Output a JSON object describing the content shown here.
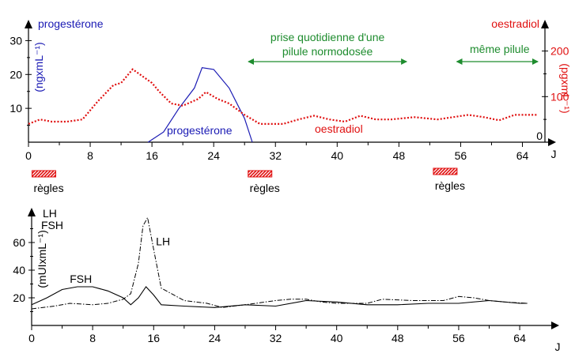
{
  "colors": {
    "progesterone": "#1a1ab4",
    "oestradiol": "#e01010",
    "annotation": "#1e8c2e",
    "axis": "#000000",
    "regles": "#e01010"
  },
  "chart_data": [
    {
      "type": "line",
      "xlabel": "J",
      "x_ticks": [
        0,
        8,
        16,
        24,
        32,
        40,
        48,
        56,
        64
      ],
      "xlim": [
        0,
        66
      ],
      "left_axis": {
        "name": "progestérone",
        "unit": "(ngxmL⁻¹)",
        "ticks": [
          10,
          20,
          30
        ],
        "ylim": [
          0,
          35
        ]
      },
      "right_axis": {
        "name": "oestradiol",
        "unit": "(pgxmL⁻¹)",
        "ticks": [
          0,
          100,
          200
        ],
        "ylim": [
          0,
          260
        ]
      },
      "series": [
        {
          "name": "progestérone",
          "axis": "left",
          "style": "solid",
          "x": [
            15.5,
            17.5,
            19.5,
            21.5,
            22.5,
            24,
            26,
            28,
            29
          ],
          "y": [
            0,
            3,
            10,
            16,
            22,
            21.5,
            16,
            7,
            0
          ]
        },
        {
          "name": "oestradiol",
          "axis": "right",
          "style": "dotted",
          "x": [
            0,
            1.5,
            3,
            5,
            7,
            9,
            11,
            12,
            13.5,
            16,
            17,
            18.5,
            20,
            22,
            23,
            24.5,
            26,
            28,
            30,
            33,
            35,
            37,
            39,
            41,
            43,
            45,
            47,
            50,
            53,
            55,
            57,
            59,
            61,
            63,
            66
          ],
          "y": [
            40,
            50,
            45,
            45,
            50,
            90,
            125,
            130,
            160,
            130,
            110,
            85,
            80,
            95,
            110,
            95,
            85,
            60,
            40,
            40,
            50,
            58,
            50,
            45,
            58,
            50,
            50,
            55,
            50,
            55,
            60,
            55,
            48,
            60,
            60
          ]
        }
      ],
      "annotations": [
        {
          "text": "prise quotidienne d'une\npilule normodosée",
          "from": 28.5,
          "to": 49
        },
        {
          "text": "même pilule",
          "from": 55.5,
          "to": 66
        }
      ],
      "periods": [
        {
          "label": "règles",
          "x": 2
        },
        {
          "label": "règles",
          "x": 30
        },
        {
          "label": "règles",
          "x": 54
        }
      ]
    },
    {
      "type": "line",
      "xlabel": "J",
      "x_ticks": [
        0,
        8,
        16,
        24,
        32,
        40,
        48,
        56,
        64
      ],
      "xlim": [
        0,
        67
      ],
      "yaxis": {
        "unit": "(mUIxmL⁻¹)",
        "ticks": [
          20,
          40,
          60
        ],
        "ylim": [
          0,
          80
        ]
      },
      "legend_labels": [
        "LH",
        "FSH"
      ],
      "series": [
        {
          "name": "LH",
          "style": "dashdot",
          "x": [
            0,
            3,
            5,
            8,
            10,
            12,
            13,
            14,
            14.6,
            15.2,
            16,
            17,
            20,
            23,
            25,
            28,
            32,
            34,
            36,
            38,
            40,
            44,
            46,
            50,
            54,
            56,
            58,
            60,
            62,
            65
          ],
          "y": [
            12,
            14,
            16,
            15,
            16,
            19,
            23,
            45,
            72,
            78,
            55,
            27,
            18,
            16,
            13,
            15,
            18,
            19,
            19,
            17,
            16,
            16,
            19,
            18,
            18,
            21,
            20,
            18,
            17,
            16
          ]
        },
        {
          "name": "FSH",
          "style": "solid",
          "x": [
            0,
            2,
            4,
            6,
            8,
            10,
            12,
            13,
            14,
            15,
            16,
            17,
            20,
            24,
            28,
            32,
            36,
            40,
            44,
            48,
            52,
            56,
            60,
            64,
            65
          ],
          "y": [
            15,
            20,
            26,
            28,
            28,
            25,
            20,
            15,
            20,
            28,
            22,
            15,
            14,
            13,
            15,
            14,
            18,
            17,
            15,
            15,
            16,
            16,
            18,
            16,
            16
          ]
        }
      ],
      "series_labels": [
        {
          "text": "LH",
          "x": 16.3,
          "y": 58
        },
        {
          "text": "FSH",
          "x": 5,
          "y": 31
        }
      ]
    }
  ]
}
